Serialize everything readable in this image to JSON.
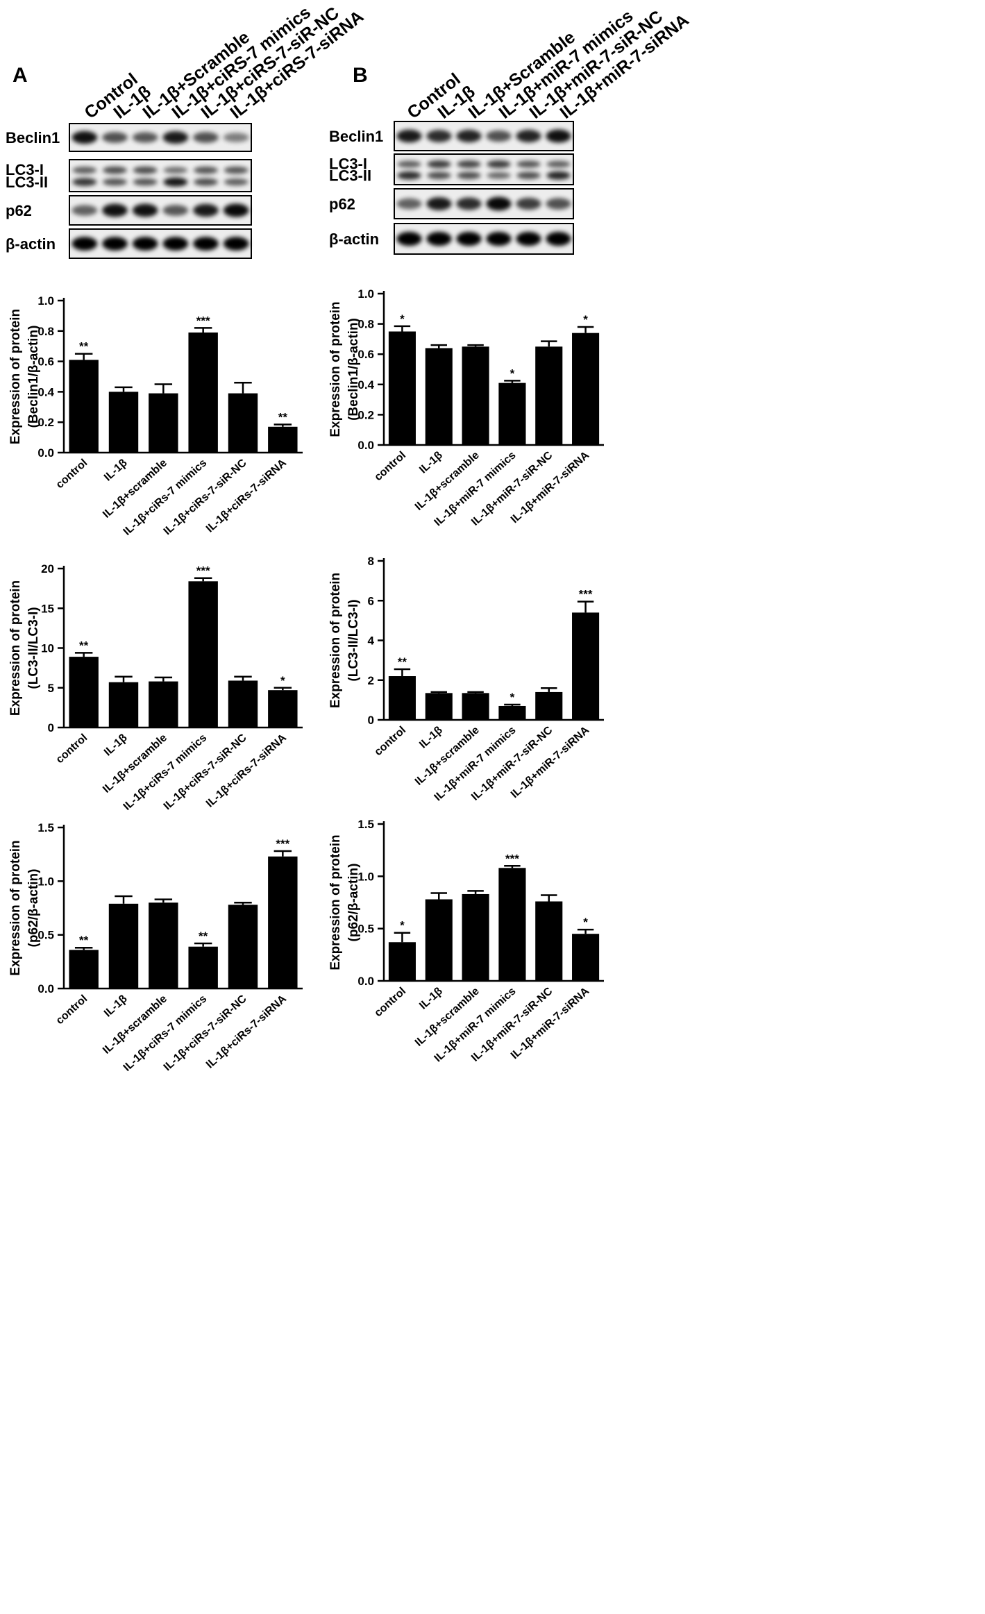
{
  "panels": [
    {
      "letter": "A",
      "blot": {
        "lanes": [
          "Control",
          "IL-1β",
          "IL-1β+Scramble",
          "IL-1β+ciRS-7 mimics",
          "IL-1β+ciRS-7-siR-NC",
          "IL-1β+ciRS-7-siRNA"
        ],
        "rows": [
          {
            "labels": [
              "Beclin1"
            ],
            "bands": [
              [
                0.9,
                0.55,
                0.5,
                0.85,
                0.55,
                0.3
              ]
            ]
          },
          {
            "labels": [
              "LC3-I",
              "LC3-II"
            ],
            "bands": [
              [
                0.5,
                0.6,
                0.6,
                0.4,
                0.55,
                0.55
              ],
              [
                0.75,
                0.55,
                0.55,
                0.95,
                0.6,
                0.5
              ]
            ]
          },
          {
            "labels": [
              "p62"
            ],
            "bands": [
              [
                0.45,
                0.9,
                0.9,
                0.5,
                0.85,
                0.95
              ]
            ]
          },
          {
            "labels": [
              "β-actin"
            ],
            "bands": [
              [
                1,
                1,
                1,
                1,
                1,
                1
              ]
            ]
          }
        ]
      }
    },
    {
      "letter": "B",
      "blot": {
        "lanes": [
          "Control",
          "IL-1β",
          "IL-1β+Scramble",
          "IL-1β+miR-7 mimics",
          "IL-1β+miR-7-siR-NC",
          "IL-1β+miR-7-siRNA"
        ],
        "rows": [
          {
            "labels": [
              "Beclin1"
            ],
            "bands": [
              [
                0.85,
                0.75,
                0.8,
                0.55,
                0.8,
                0.9
              ]
            ]
          },
          {
            "labels": [
              "LC3-I",
              "LC3-II"
            ],
            "bands": [
              [
                0.5,
                0.7,
                0.65,
                0.7,
                0.55,
                0.5
              ],
              [
                0.8,
                0.6,
                0.6,
                0.45,
                0.6,
                0.85
              ]
            ]
          },
          {
            "labels": [
              "p62"
            ],
            "bands": [
              [
                0.45,
                0.85,
                0.75,
                0.95,
                0.65,
                0.55
              ]
            ]
          },
          {
            "labels": [
              "β-actin"
            ],
            "bands": [
              [
                1,
                1,
                1,
                1,
                1,
                1
              ]
            ]
          }
        ]
      }
    }
  ],
  "chart_data": [
    {
      "type": "bar",
      "ylabel": [
        "Expression of protein",
        "(Beclin1/β-actin)"
      ],
      "categories": [
        "control",
        "IL-1β",
        "IL-1β+scramble",
        "IL-1β+ciRs-7 mimics",
        "IL-1β+ciRs-7-siR-NC",
        "IL-1β+ciRs-7-siRNA"
      ],
      "values": [
        0.61,
        0.4,
        0.39,
        0.79,
        0.39,
        0.17
      ],
      "errors": [
        0.04,
        0.03,
        0.06,
        0.03,
        0.07,
        0.015
      ],
      "significance": [
        "**",
        "",
        "",
        "***",
        "",
        "**"
      ],
      "ylim": [
        0,
        1.0
      ],
      "yticks": [
        "0.0",
        "0.2",
        "0.4",
        "0.6",
        "0.8",
        "1.0"
      ],
      "color": "#000000"
    },
    {
      "type": "bar",
      "ylabel": [
        "Expression of protein",
        "(Beclin1/β-actin)"
      ],
      "categories": [
        "control",
        "IL-1β",
        "IL-1β+scramble",
        "IL-1β+miR-7 mimics",
        "IL-1β+miR-7-siR-NC",
        "IL-1β+miR-7-siRNA"
      ],
      "values": [
        0.75,
        0.64,
        0.65,
        0.41,
        0.65,
        0.74
      ],
      "errors": [
        0.035,
        0.02,
        0.01,
        0.015,
        0.035,
        0.04
      ],
      "significance": [
        "*",
        "",
        "",
        "*",
        "",
        "*"
      ],
      "ylim": [
        0,
        1.0
      ],
      "yticks": [
        "0.0",
        "0.2",
        "0.4",
        "0.6",
        "0.8",
        "1.0"
      ],
      "color": "#000000"
    },
    {
      "type": "bar",
      "ylabel": [
        "Expression of protein",
        "(LC3-II/LC3-I)"
      ],
      "categories": [
        "control",
        "IL-1β",
        "IL-1β+scramble",
        "IL-1β+ciRs-7 mimics",
        "IL-1β+ciRs-7-siR-NC",
        "IL-1β+ciRs-7-siRNA"
      ],
      "values": [
        8.9,
        5.7,
        5.8,
        18.4,
        5.9,
        4.7
      ],
      "errors": [
        0.5,
        0.7,
        0.5,
        0.4,
        0.5,
        0.3
      ],
      "significance": [
        "**",
        "",
        "",
        "***",
        "",
        "*"
      ],
      "ylim": [
        0,
        20
      ],
      "yticks": [
        "0",
        "5",
        "10",
        "15",
        "20"
      ],
      "color": "#000000"
    },
    {
      "type": "bar",
      "ylabel": [
        "Expression of protein",
        "(LC3-II/LC3-I)"
      ],
      "categories": [
        "control",
        "IL-1β",
        "IL-1β+scramble",
        "IL-1β+miR-7 mimics",
        "IL-1β+miR-7-siR-NC",
        "IL-1β+miR-7-siRNA"
      ],
      "values": [
        2.2,
        1.35,
        1.35,
        0.7,
        1.4,
        5.4
      ],
      "errors": [
        0.35,
        0.05,
        0.05,
        0.07,
        0.2,
        0.55
      ],
      "significance": [
        "**",
        "",
        "",
        "*",
        "",
        "***"
      ],
      "ylim": [
        0,
        8
      ],
      "yticks": [
        "0",
        "2",
        "4",
        "6",
        "8"
      ],
      "color": "#000000"
    },
    {
      "type": "bar",
      "ylabel": [
        "Expression of protein",
        "(p62/β-actin)"
      ],
      "categories": [
        "control",
        "IL-1β",
        "IL-1β+scramble",
        "IL-1β+ciRs-7 mimics",
        "IL-1β+ciRs-7-siR-NC",
        "IL-1β+ciRs-7-siRNA"
      ],
      "values": [
        0.36,
        0.79,
        0.8,
        0.39,
        0.78,
        1.23
      ],
      "errors": [
        0.02,
        0.07,
        0.03,
        0.03,
        0.02,
        0.05
      ],
      "significance": [
        "**",
        "",
        "",
        "**",
        "",
        "***"
      ],
      "ylim": [
        0,
        1.5
      ],
      "yticks": [
        "0.0",
        "0.5",
        "1.0",
        "1.5"
      ],
      "color": "#000000"
    },
    {
      "type": "bar",
      "ylabel": [
        "Expression of protein",
        "(p62/β-actin)"
      ],
      "categories": [
        "control",
        "IL-1β",
        "IL-1β+scramble",
        "IL-1β+miR-7 mimics",
        "IL-1β+miR-7-siR-NC",
        "IL-1β+miR-7-siRNA"
      ],
      "values": [
        0.37,
        0.78,
        0.83,
        1.08,
        0.76,
        0.45
      ],
      "errors": [
        0.09,
        0.06,
        0.03,
        0.02,
        0.06,
        0.04
      ],
      "significance": [
        "*",
        "",
        "",
        "***",
        "",
        "*"
      ],
      "ylim": [
        0,
        1.5
      ],
      "yticks": [
        "0.0",
        "0.5",
        "1.0",
        "1.5"
      ],
      "color": "#000000"
    }
  ]
}
